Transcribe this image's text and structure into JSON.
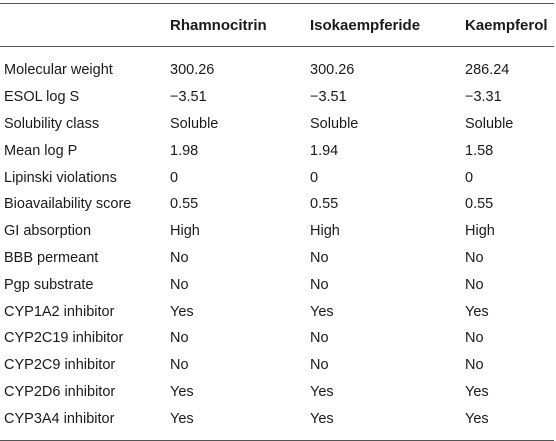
{
  "table": {
    "headers": [
      "",
      "Rhamnocitrin",
      "Isokaempferide",
      "Kaempferol"
    ],
    "rows": [
      {
        "property": "Molecular weight",
        "values": [
          "300.26",
          "300.26",
          "286.24"
        ]
      },
      {
        "property": "ESOL log S",
        "values": [
          "−3.51",
          "−3.51",
          "−3.31"
        ]
      },
      {
        "property": "Solubility class",
        "values": [
          "Soluble",
          "Soluble",
          "Soluble"
        ]
      },
      {
        "property": "Mean log P",
        "values": [
          "1.98",
          "1.94",
          "1.58"
        ]
      },
      {
        "property": "Lipinski violations",
        "values": [
          "0",
          "0",
          "0"
        ]
      },
      {
        "property": "Bioavailability score",
        "values": [
          "0.55",
          "0.55",
          "0.55"
        ]
      },
      {
        "property": "GI absorption",
        "values": [
          "High",
          "High",
          "High"
        ]
      },
      {
        "property": "BBB permeant",
        "values": [
          "No",
          "No",
          "No"
        ]
      },
      {
        "property": "Pgp substrate",
        "values": [
          "No",
          "No",
          "No"
        ]
      },
      {
        "property": "CYP1A2 inhibitor",
        "values": [
          "Yes",
          "Yes",
          "Yes"
        ]
      },
      {
        "property": "CYP2C19 inhibitor",
        "values": [
          "No",
          "No",
          "No"
        ]
      },
      {
        "property": "CYP2C9 inhibitor",
        "values": [
          "No",
          "No",
          "No"
        ]
      },
      {
        "property": "CYP2D6 inhibitor",
        "values": [
          "Yes",
          "Yes",
          "Yes"
        ]
      },
      {
        "property": "CYP3A4 inhibitor",
        "values": [
          "Yes",
          "Yes",
          "Yes"
        ]
      }
    ]
  }
}
